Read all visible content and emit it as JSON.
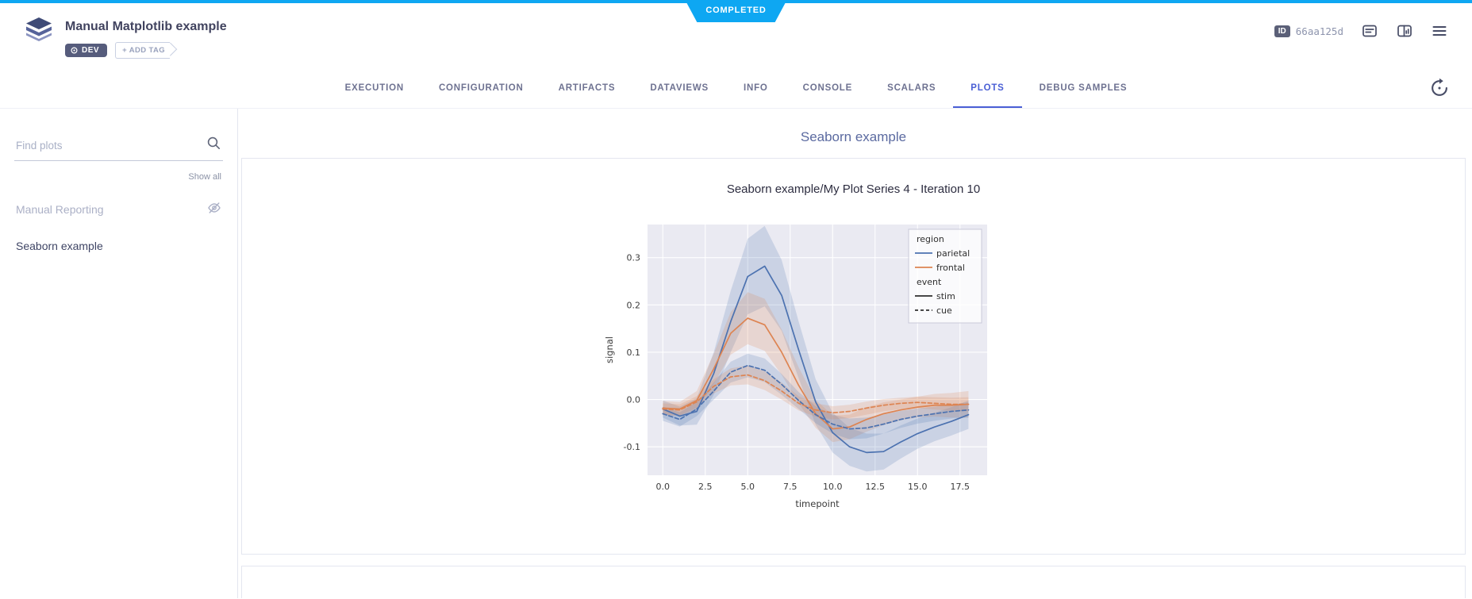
{
  "colors": {
    "status": "#0ea7f2",
    "accent": "#4a5fd5",
    "seaborn_blue": "#4c72b0",
    "seaborn_orange": "#dd8452"
  },
  "status": {
    "label": "COMPLETED"
  },
  "header": {
    "title": "Manual Matplotlib example",
    "tags": {
      "dev": "DEV",
      "add_tag": "+ ADD TAG"
    },
    "id_badge": {
      "label": "ID",
      "value": "66aa125d"
    }
  },
  "tabs": {
    "items": [
      "EXECUTION",
      "CONFIGURATION",
      "ARTIFACTS",
      "DATAVIEWS",
      "INFO",
      "CONSOLE",
      "SCALARS",
      "PLOTS",
      "DEBUG SAMPLES"
    ],
    "active": "PLOTS"
  },
  "sidebar": {
    "search_placeholder": "Find plots",
    "show_all": "Show all",
    "items": [
      {
        "label": "Manual Reporting",
        "hidden": true
      },
      {
        "label": "Seaborn example",
        "hidden": false
      }
    ]
  },
  "main": {
    "heading": "Seaborn example"
  },
  "chart_data": {
    "type": "line",
    "title": "Seaborn example/My Plot Series 4 - Iteration 10",
    "xlabel": "timepoint",
    "ylabel": "signal",
    "plot_bg": "#eaeaf2",
    "grid_color": "#ffffff",
    "xlim": [
      -0.9,
      19.1
    ],
    "ylim": [
      -0.16,
      0.37
    ],
    "x_ticks": [
      0.0,
      2.5,
      5.0,
      7.5,
      10.0,
      12.5,
      15.0,
      17.5
    ],
    "y_ticks": [
      -0.1,
      0.0,
      0.1,
      0.2,
      0.3
    ],
    "x": [
      0,
      1,
      2,
      3,
      4,
      5,
      6,
      7,
      8,
      9,
      10,
      11,
      12,
      13,
      14,
      15,
      16,
      17,
      18
    ],
    "series": [
      {
        "name": "parietal-stim",
        "color": "#4c72b0",
        "dash": false,
        "values": [
          -0.02,
          -0.035,
          -0.025,
          0.055,
          0.165,
          0.26,
          0.282,
          0.22,
          0.105,
          -0.005,
          -0.07,
          -0.1,
          -0.112,
          -0.11,
          -0.09,
          -0.072,
          -0.058,
          -0.046,
          -0.032
        ],
        "band": [
          0.018,
          0.02,
          0.028,
          0.045,
          0.065,
          0.08,
          0.085,
          0.075,
          0.06,
          0.048,
          0.042,
          0.04,
          0.04,
          0.038,
          0.035,
          0.032,
          0.03,
          0.03,
          0.03
        ]
      },
      {
        "name": "frontal-stim",
        "color": "#dd8452",
        "dash": false,
        "values": [
          -0.018,
          -0.02,
          -0.002,
          0.065,
          0.14,
          0.172,
          0.158,
          0.1,
          0.03,
          -0.03,
          -0.062,
          -0.058,
          -0.042,
          -0.03,
          -0.022,
          -0.016,
          -0.012,
          -0.012,
          -0.01
        ],
        "band": [
          0.015,
          0.015,
          0.02,
          0.032,
          0.045,
          0.055,
          0.055,
          0.048,
          0.038,
          0.03,
          0.028,
          0.026,
          0.026,
          0.024,
          0.022,
          0.022,
          0.024,
          0.026,
          0.028
        ]
      },
      {
        "name": "parietal-cue",
        "color": "#4c72b0",
        "dash": true,
        "values": [
          -0.03,
          -0.042,
          -0.02,
          0.018,
          0.058,
          0.072,
          0.062,
          0.032,
          -0.002,
          -0.032,
          -0.052,
          -0.062,
          -0.06,
          -0.052,
          -0.042,
          -0.035,
          -0.03,
          -0.025,
          -0.022
        ],
        "band": [
          0.015,
          0.015,
          0.015,
          0.018,
          0.022,
          0.025,
          0.025,
          0.022,
          0.018,
          0.018,
          0.02,
          0.022,
          0.022,
          0.02,
          0.018,
          0.016,
          0.015,
          0.015,
          0.016
        ]
      },
      {
        "name": "frontal-cue",
        "color": "#dd8452",
        "dash": true,
        "values": [
          -0.02,
          -0.022,
          -0.005,
          0.028,
          0.048,
          0.052,
          0.04,
          0.018,
          -0.008,
          -0.022,
          -0.028,
          -0.025,
          -0.018,
          -0.012,
          -0.008,
          -0.006,
          -0.008,
          -0.01,
          -0.01
        ],
        "band": [
          0.012,
          0.012,
          0.012,
          0.015,
          0.018,
          0.02,
          0.02,
          0.018,
          0.015,
          0.014,
          0.014,
          0.014,
          0.014,
          0.013,
          0.012,
          0.012,
          0.013,
          0.014,
          0.015
        ]
      }
    ],
    "legend": [
      {
        "title": "region",
        "entries": [
          {
            "label": "parietal",
            "color": "#4c72b0",
            "dash": false
          },
          {
            "label": "frontal",
            "color": "#dd8452",
            "dash": false
          }
        ]
      },
      {
        "title": "event",
        "entries": [
          {
            "label": "stim",
            "color": "#2f2f2f",
            "dash": false
          },
          {
            "label": "cue",
            "color": "#2f2f2f",
            "dash": true
          }
        ]
      }
    ],
    "legend_position": "upper right",
    "grid": true
  }
}
